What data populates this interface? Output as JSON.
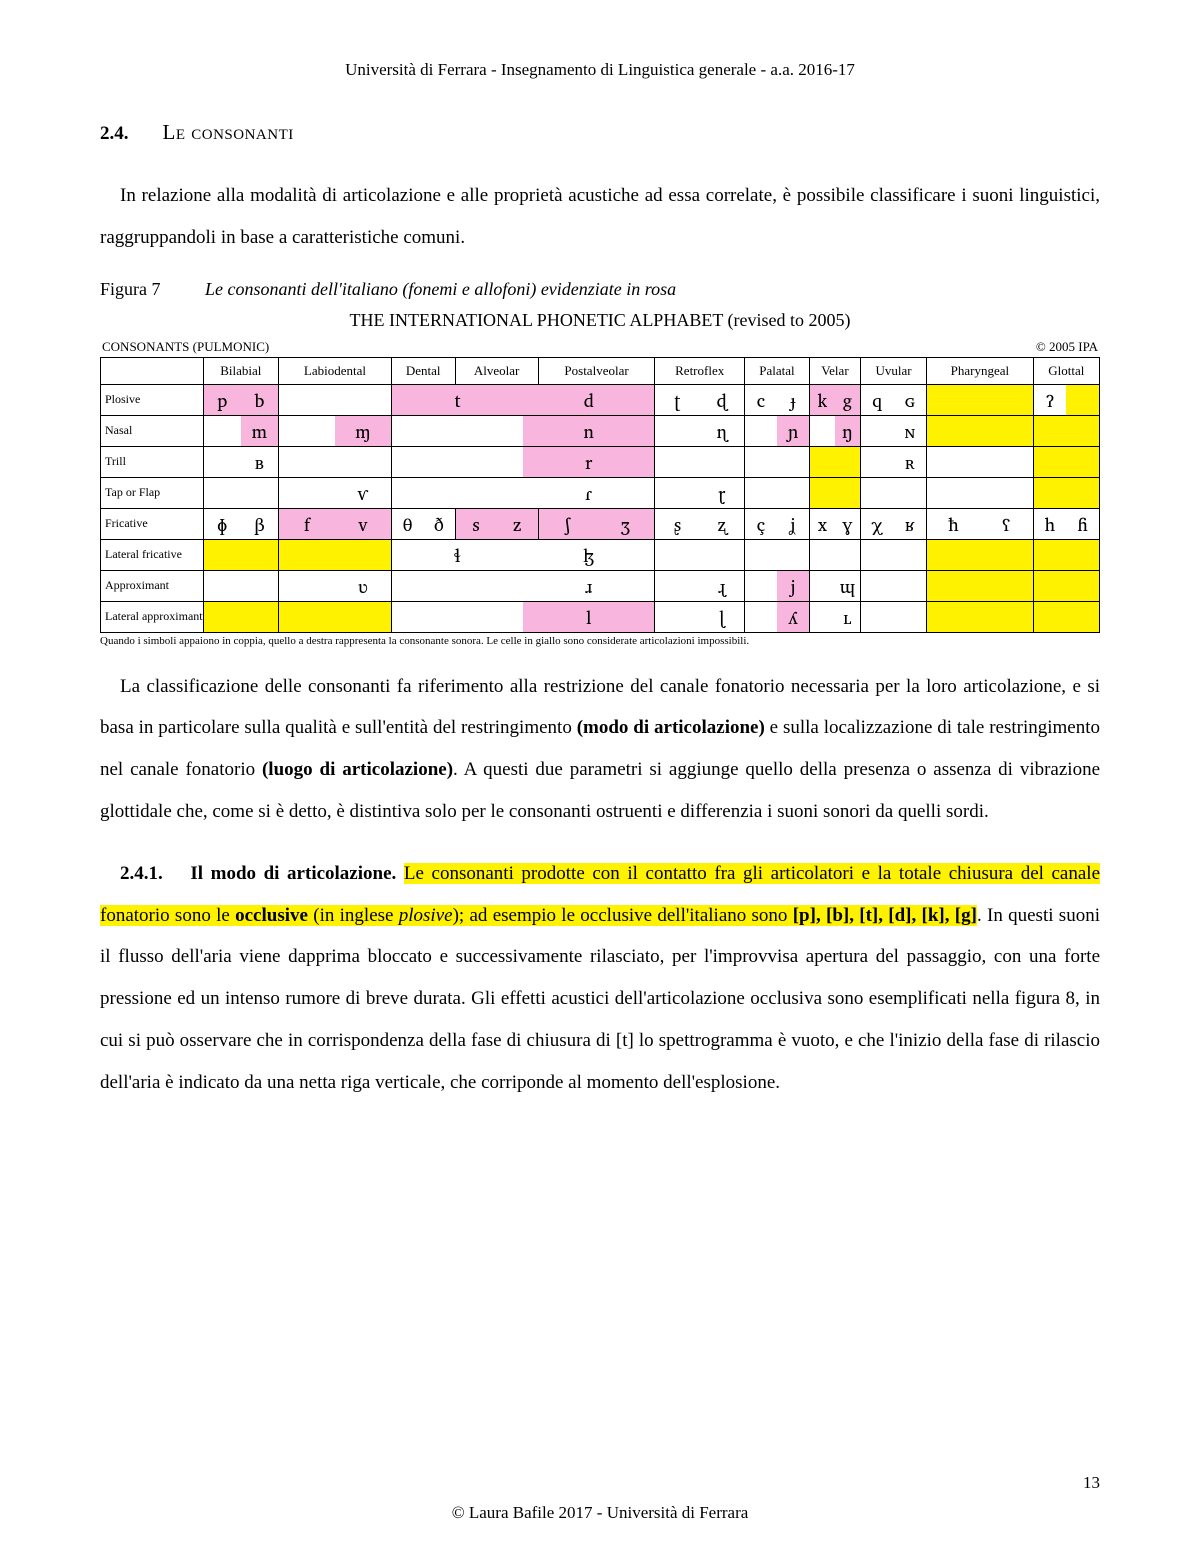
{
  "header": "Università di Ferrara - Insegnamento di Linguistica generale - a.a. 2016-17",
  "section": {
    "num": "2.4.",
    "title": "Le consonanti"
  },
  "para1": "In relazione alla modalità di articolazione e alle proprietà acustiche ad essa correlate, è possibile classificare i suoni linguistici, raggruppandoli in base a caratteristiche comuni.",
  "figure": {
    "label": "Figura 7",
    "caption": "Le consonanti dell'italiano (fonemi e allofoni) evidenziate in rosa"
  },
  "ipa_title": "THE INTERNATIONAL PHONETIC ALPHABET (revised to 2005)",
  "ipa_meta_left": "CONSONANTS (PULMONIC)",
  "ipa_meta_right": "© 2005 IPA",
  "table_note": "Quando i simboli appaiono in coppia, quello a destra rappresenta la consonante sonora. Le celle in giallo sono considerate articolazioni impossibili.",
  "columns": [
    "Bilabial",
    "Labiodental",
    "Dental",
    "Alveolar",
    "Postalveolar",
    "Retroflex",
    "Palatal",
    "Velar",
    "Uvular",
    "Pharyngeal",
    "Glottal"
  ],
  "rows": [
    {
      "label": "Plosive",
      "cells": [
        {
          "l": "p",
          "r": "b",
          "lc": "pink",
          "rc": "pink"
        },
        {
          "l": "",
          "r": ""
        },
        {
          "span": 3,
          "l": "t",
          "r": "d",
          "lc": "pink",
          "rc": "pink"
        },
        {
          "l": "ʈ",
          "r": "ɖ"
        },
        {
          "l": "c",
          "r": "ɟ"
        },
        {
          "l": "k",
          "r": "g",
          "lc": "pink",
          "rc": "pink"
        },
        {
          "l": "q",
          "r": "ɢ"
        },
        {
          "l": "",
          "r": "",
          "lc": "yellow",
          "rc": "yellow"
        },
        {
          "l": "ʔ",
          "r": "",
          "rc": "yellow"
        }
      ]
    },
    {
      "label": "Nasal",
      "cells": [
        {
          "l": "",
          "r": "m",
          "rc": "pink"
        },
        {
          "l": "",
          "r": "ɱ",
          "rc": "pink"
        },
        {
          "span": 3,
          "l": "",
          "r": "n",
          "rc": "pink"
        },
        {
          "l": "",
          "r": "ɳ"
        },
        {
          "l": "",
          "r": "ɲ",
          "rc": "pink"
        },
        {
          "l": "",
          "r": "ŋ",
          "rc": "pink"
        },
        {
          "l": "",
          "r": "ɴ"
        },
        {
          "l": "",
          "r": "",
          "lc": "yellow",
          "rc": "yellow"
        },
        {
          "l": "",
          "r": "",
          "lc": "yellow",
          "rc": "yellow"
        }
      ]
    },
    {
      "label": "Trill",
      "cells": [
        {
          "l": "",
          "r": "ʙ"
        },
        {
          "l": "",
          "r": ""
        },
        {
          "span": 3,
          "l": "",
          "r": "r",
          "rc": "pink"
        },
        {
          "l": "",
          "r": ""
        },
        {
          "l": "",
          "r": ""
        },
        {
          "l": "",
          "r": "",
          "lc": "yellow",
          "rc": "yellow"
        },
        {
          "l": "",
          "r": "ʀ"
        },
        {
          "l": "",
          "r": ""
        },
        {
          "l": "",
          "r": "",
          "lc": "yellow",
          "rc": "yellow"
        }
      ]
    },
    {
      "label": "Tap or Flap",
      "cells": [
        {
          "l": "",
          "r": ""
        },
        {
          "l": "",
          "r": "ⱱ"
        },
        {
          "span": 3,
          "l": "",
          "r": "ɾ"
        },
        {
          "l": "",
          "r": "ɽ"
        },
        {
          "l": "",
          "r": ""
        },
        {
          "l": "",
          "r": "",
          "lc": "yellow",
          "rc": "yellow"
        },
        {
          "l": "",
          "r": ""
        },
        {
          "l": "",
          "r": ""
        },
        {
          "l": "",
          "r": "",
          "lc": "yellow",
          "rc": "yellow"
        }
      ]
    },
    {
      "label": "Fricative",
      "cells": [
        {
          "l": "ɸ",
          "r": "β"
        },
        {
          "l": "f",
          "r": "v",
          "lc": "pink",
          "rc": "pink"
        },
        {
          "l": "θ",
          "r": "ð"
        },
        {
          "l": "s",
          "r": "z",
          "lc": "pink",
          "rc": "pink"
        },
        {
          "l": "ʃ",
          "r": "ʒ",
          "lc": "pink",
          "rc": "pink"
        },
        {
          "l": "ʂ",
          "r": "ʐ"
        },
        {
          "l": "ç",
          "r": "ʝ"
        },
        {
          "l": "x",
          "r": "ɣ"
        },
        {
          "l": "χ",
          "r": "ʁ"
        },
        {
          "l": "ħ",
          "r": "ʕ"
        },
        {
          "l": "h",
          "r": "ɦ"
        }
      ]
    },
    {
      "label": "Lateral fricative",
      "cells": [
        {
          "l": "",
          "r": "",
          "lc": "yellow",
          "rc": "yellow"
        },
        {
          "l": "",
          "r": "",
          "lc": "yellow",
          "rc": "yellow"
        },
        {
          "span": 3,
          "l": "ɬ",
          "r": "ɮ"
        },
        {
          "l": "",
          "r": ""
        },
        {
          "l": "",
          "r": ""
        },
        {
          "l": "",
          "r": ""
        },
        {
          "l": "",
          "r": ""
        },
        {
          "l": "",
          "r": "",
          "lc": "yellow",
          "rc": "yellow"
        },
        {
          "l": "",
          "r": "",
          "lc": "yellow",
          "rc": "yellow"
        }
      ]
    },
    {
      "label": "Approximant",
      "cells": [
        {
          "l": "",
          "r": ""
        },
        {
          "l": "",
          "r": "ʋ"
        },
        {
          "span": 3,
          "l": "",
          "r": "ɹ"
        },
        {
          "l": "",
          "r": "ɻ"
        },
        {
          "l": "",
          "r": "j",
          "rc": "pink"
        },
        {
          "l": "",
          "r": "ɰ"
        },
        {
          "l": "",
          "r": ""
        },
        {
          "l": "",
          "r": "",
          "lc": "yellow",
          "rc": "yellow"
        },
        {
          "l": "",
          "r": "",
          "lc": "yellow",
          "rc": "yellow"
        }
      ]
    },
    {
      "label": "Lateral approximant",
      "cells": [
        {
          "l": "",
          "r": "",
          "lc": "yellow",
          "rc": "yellow"
        },
        {
          "l": "",
          "r": "",
          "lc": "yellow",
          "rc": "yellow"
        },
        {
          "span": 3,
          "l": "",
          "r": "l",
          "rc": "pink"
        },
        {
          "l": "",
          "r": "ɭ"
        },
        {
          "l": "",
          "r": "ʎ",
          "rc": "pink"
        },
        {
          "l": "",
          "r": "ʟ"
        },
        {
          "l": "",
          "r": ""
        },
        {
          "l": "",
          "r": "",
          "lc": "yellow",
          "rc": "yellow"
        },
        {
          "l": "",
          "r": "",
          "lc": "yellow",
          "rc": "yellow"
        }
      ]
    }
  ],
  "para2_a": "La classificazione delle consonanti fa riferimento alla restrizione del canale fonatorio necessaria per la loro articolazione, e si basa in particolare sulla qualità e sull'entità del restringimento ",
  "para2_b": "(modo di articolazione)",
  "para2_c": " e sulla localizzazione di tale restringimento nel canale fonatorio ",
  "para2_d": "(luogo di articolazione)",
  "para2_e": ". A questi due parametri si aggiunge quello della presenza o assenza di vibrazione glottidale che, come si è detto, è distintiva solo per le consonanti ostruenti e differenzia i suoni sonori da quelli sordi.",
  "sub": {
    "num": "2.4.1.",
    "title": "Il modo di articolazione."
  },
  "p3_hl1": " Le consonanti prodotte con il contatto fra gli articolatori e la totale chiusura del canale fonatorio sono le ",
  "p3_hl_bold": "occlusive",
  "p3_hl2a": " (in inglese ",
  "p3_hl2_it": "plosive",
  "p3_hl2b": "); ad esempio le occlusive dell'italiano sono ",
  "p3_hl_list": "[p], [b], [t], [d], [k], [g]",
  "p3_tail": ". In questi suoni il flusso dell'aria viene dapprima bloccato e successivamente rilasciato, per l'improvvisa apertura del passaggio, con una forte pressione ed un intenso rumore di breve durata. Gli effetti acustici dell'articolazione occlusiva sono esemplificati nella figura 8, in cui si può osservare che in corrispondenza della fase di chiusura di [t] lo spettrogramma è vuoto, e che l'inizio della fase di rilascio dell'aria è indicato da una netta riga verticale, che corriponde al momento dell'esplosione.",
  "footer": "© Laura Bafile 2017  - Università di Ferrara",
  "pagenum": "13",
  "colors": {
    "pink": "#f8b6de",
    "yellow": "#fff200"
  }
}
